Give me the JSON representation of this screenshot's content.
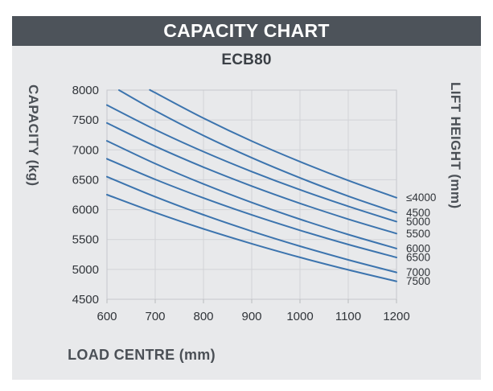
{
  "header": {
    "title": "CAPACITY CHART"
  },
  "chart_data": {
    "type": "line",
    "title": "ECB80",
    "xlabel": "LOAD CENTRE (mm)",
    "ylabel_left": "CAPACITY (kg)",
    "ylabel_right": "LIFT HEIGHT (mm)",
    "xlim": [
      600,
      1200
    ],
    "ylim": [
      4500,
      8000
    ],
    "x_ticks": [
      600,
      700,
      800,
      900,
      1000,
      1100,
      1200
    ],
    "y_ticks": [
      4500,
      5000,
      5500,
      6000,
      6500,
      7000,
      7500,
      8000
    ],
    "grid": true,
    "legend_position": "right of curve endpoints",
    "series": [
      {
        "name": "≤4000",
        "points": [
          [
            690,
            8000
          ],
          [
            700,
            7955
          ],
          [
            800,
            7530
          ],
          [
            900,
            7147
          ],
          [
            1000,
            6803
          ],
          [
            1100,
            6488
          ],
          [
            1200,
            6200
          ]
        ]
      },
      {
        "name": "4500",
        "points": [
          [
            625,
            8000
          ],
          [
            700,
            7656
          ],
          [
            800,
            7240
          ],
          [
            900,
            6868
          ],
          [
            1000,
            6532
          ],
          [
            1100,
            6226
          ],
          [
            1200,
            5950
          ]
        ]
      },
      {
        "name": "5000",
        "points": [
          [
            600,
            7750
          ],
          [
            700,
            7339
          ],
          [
            800,
            6970
          ],
          [
            900,
            6636
          ],
          [
            1000,
            6333
          ],
          [
            1100,
            6056
          ],
          [
            1200,
            5800
          ]
        ]
      },
      {
        "name": "5500",
        "points": [
          [
            600,
            7450
          ],
          [
            700,
            7061
          ],
          [
            800,
            6711
          ],
          [
            900,
            6394
          ],
          [
            1000,
            6105
          ],
          [
            1100,
            5841
          ],
          [
            1200,
            5600
          ]
        ]
      },
      {
        "name": "6000",
        "points": [
          [
            600,
            7150
          ],
          [
            700,
            6770
          ],
          [
            800,
            6429
          ],
          [
            900,
            6120
          ],
          [
            1000,
            5840
          ],
          [
            1100,
            5584
          ],
          [
            1200,
            5350
          ]
        ]
      },
      {
        "name": "6500",
        "points": [
          [
            600,
            6850
          ],
          [
            700,
            6506
          ],
          [
            800,
            6195
          ],
          [
            900,
            5912
          ],
          [
            1000,
            5654
          ],
          [
            1100,
            5417
          ],
          [
            1200,
            5200
          ]
        ]
      },
      {
        "name": "7000",
        "points": [
          [
            600,
            6550
          ],
          [
            700,
            6215
          ],
          [
            800,
            5913
          ],
          [
            900,
            5639
          ],
          [
            1000,
            5389
          ],
          [
            1100,
            5160
          ],
          [
            1200,
            4950
          ]
        ]
      },
      {
        "name": "7500",
        "points": [
          [
            600,
            6250
          ],
          [
            700,
            5951
          ],
          [
            800,
            5678
          ],
          [
            900,
            5430
          ],
          [
            1000,
            5202
          ],
          [
            1100,
            4993
          ],
          [
            1200,
            4800
          ]
        ]
      }
    ]
  },
  "colors": {
    "header_bg": "#4d535a",
    "content_bg": "#e8e9eb",
    "grid": "#d2d3d7",
    "plot_border": "#c6c8cc",
    "tick_mark": "#b8babd",
    "curve": "#3c74ae",
    "tick_text": "#303439",
    "label_text": "#4b5056"
  }
}
